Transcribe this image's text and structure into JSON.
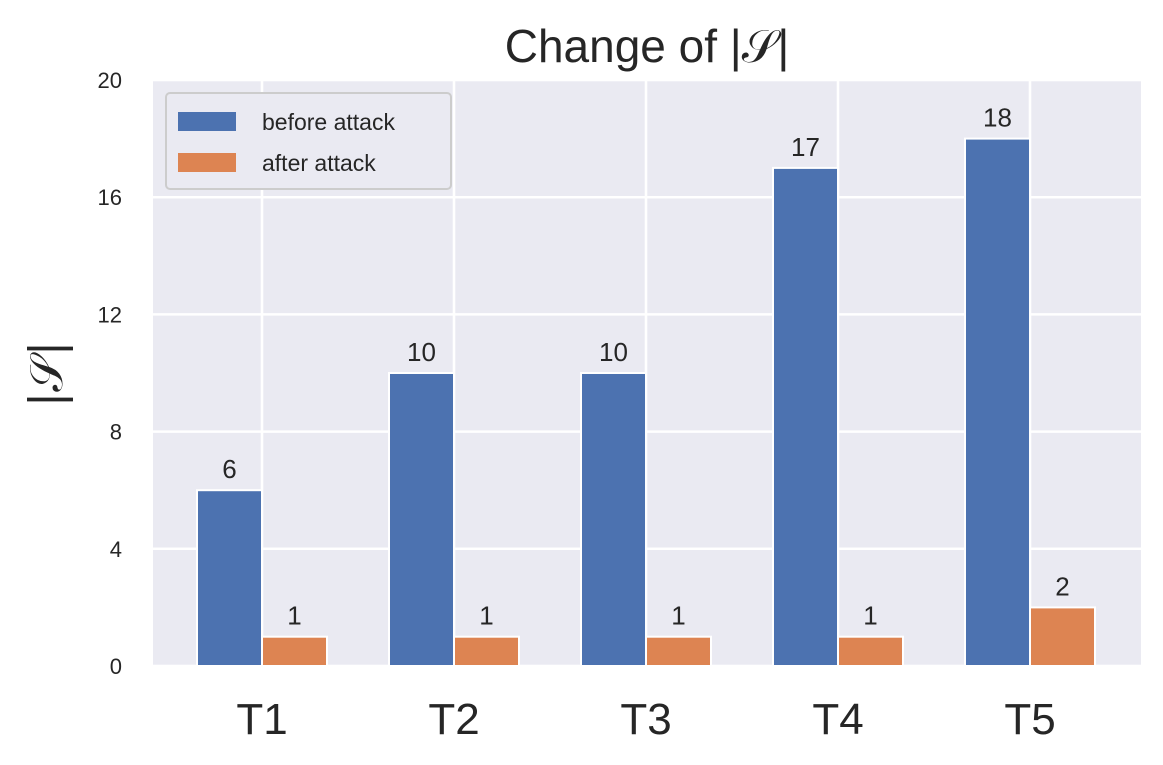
{
  "chart_data": {
    "type": "bar",
    "title": "Change of |𝒮|",
    "xlabel": "",
    "ylabel": "|𝒮|",
    "categories": [
      "T1",
      "T2",
      "T3",
      "T4",
      "T5"
    ],
    "series": [
      {
        "name": "before attack",
        "values": [
          6,
          10,
          10,
          17,
          18
        ],
        "color": "#4c72b0"
      },
      {
        "name": "after attack",
        "values": [
          1,
          1,
          1,
          1,
          2
        ],
        "color": "#dd8452"
      }
    ],
    "ylim": [
      0,
      20
    ],
    "yticks": [
      0,
      4,
      8,
      12,
      16,
      20
    ],
    "grid": true,
    "legend_position": "top-left",
    "background_color": "#eaeaf2"
  }
}
